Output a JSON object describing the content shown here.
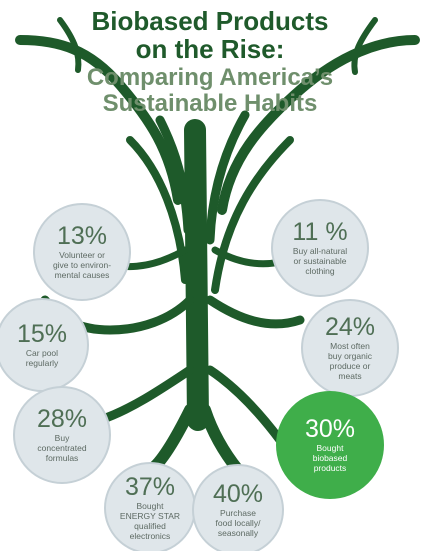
{
  "title": [
    "Biobased Products",
    "on the Rise:"
  ],
  "subtitle": [
    "Comparing America’s",
    "Sustainable Habits"
  ],
  "items": [
    {
      "value": "13%",
      "label": [
        "Volunteer or",
        "give to environ-",
        "mental causes"
      ]
    },
    {
      "value": "11 %",
      "label": [
        "Buy all-natural",
        "or sustainable",
        "clothing"
      ]
    },
    {
      "value": "15%",
      "label": [
        "Car pool",
        "regularly"
      ]
    },
    {
      "value": "24%",
      "label": [
        "Most often",
        "buy organic",
        "produce or",
        "meats"
      ]
    },
    {
      "value": "28%",
      "label": [
        "Buy",
        "concentrated",
        "formulas"
      ]
    },
    {
      "value": "30%",
      "label": [
        "Bought",
        "biobased",
        "products"
      ]
    },
    {
      "value": "37%",
      "label": [
        "Bought",
        "ENERGY STAR",
        "qualified",
        "electronics"
      ]
    },
    {
      "value": "40%",
      "label": [
        "Purchase",
        "food locally/",
        "seasonally"
      ]
    }
  ]
}
